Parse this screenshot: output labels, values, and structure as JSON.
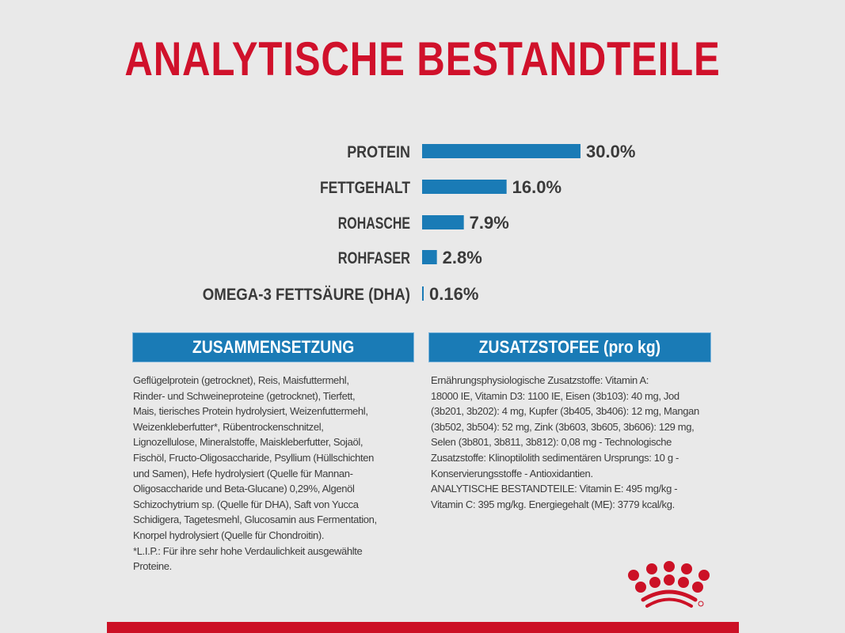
{
  "title": "ANALYTISCHE BESTANDTEILE",
  "chart_data": {
    "type": "bar",
    "orientation": "horizontal",
    "categories": [
      "PROTEIN",
      "FETTGEHALT",
      "ROHASCHE",
      "ROHFASER",
      "OMEGA-3 FETTSÄURE (DHA)"
    ],
    "values": [
      30.0,
      16.0,
      7.9,
      2.8,
      0.16
    ],
    "data_labels": [
      "30.0%",
      "16.0%",
      "7.9%",
      "2.8%",
      "0.16%"
    ],
    "unit": "%",
    "grid": false,
    "bar_color": "#1a7bb6"
  },
  "composition": {
    "heading": "ZUSAMMENSETZUNG",
    "lines": [
      "Geflügelprotein (getrocknet), Reis, Maisfuttermehl,",
      "Rinder- und Schweineproteine (getrocknet), Tierfett,",
      "Mais, tierisches Protein hydrolysiert, Weizenfuttermehl,",
      "Weizenkleberfutter*, Rübentrockenschnitzel,",
      "Lignozellulose, Mineralstoffe, Maiskleberfutter, Sojaöl,",
      "Fischöl, Fructo-Oligosaccharide, Psyllium (Hüllschichten",
      "und Samen), Hefe hydrolysiert (Quelle für Mannan-",
      "Oligosaccharide und Beta-Glucane) 0,29%, Algenöl",
      "Schizochytrium sp. (Quelle für DHA), Saft von Yucca",
      "Schidigera, Tagetesmehl, Glucosamin aus Fermentation,",
      "Knorpel hydrolysiert (Quelle für Chondroitin).",
      "*L.I.P.: Für ihre sehr hohe Verdaulichkeit ausgewählte",
      "Proteine."
    ]
  },
  "additives": {
    "heading": "ZUSATZSTOFEE (pro kg)",
    "lines": [
      "Ernährungsphysiologische Zusatzstoffe: Vitamin A:",
      "18000 IE, Vitamin D3: 1100 IE, Eisen (3b103): 40 mg, Jod",
      "(3b201, 3b202): 4 mg, Kupfer (3b405, 3b406): 12 mg, Mangan",
      "(3b502, 3b504): 52 mg, Zink (3b603, 3b605, 3b606): 129 mg,",
      "Selen (3b801, 3b811, 3b812): 0,08 mg - Technologische",
      "Zusatzstoffe: Klinoptilolith sedimentären Ursprungs: 10 g -",
      "Konservierungsstoffe - Antioxidantien.",
      "ANALYTISCHE BESTANDTEILE: Vitamin E: 495 mg/kg -",
      "Vitamin C: 395 mg/kg. Energiegehalt (ME): 3779 kcal/kg."
    ]
  },
  "colors": {
    "brand_red": "#cc1126",
    "accent_blue": "#1a7bb6",
    "background": "#e9e9e9"
  },
  "logo": {
    "icon": "royal-canin-crown-logo"
  }
}
